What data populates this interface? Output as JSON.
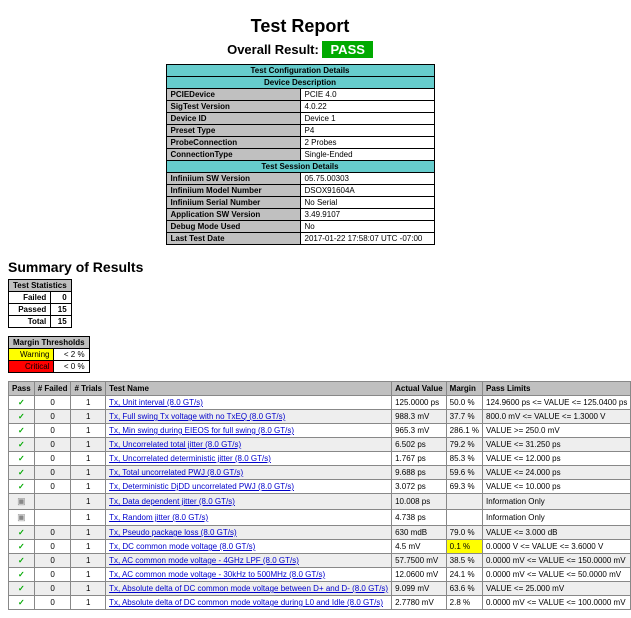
{
  "title": "Test Report",
  "overall_label": "Overall Result:",
  "overall_value": "PASS",
  "config": {
    "header1": "Test Configuration Details",
    "header2": "Device Description",
    "rows1": [
      {
        "k": "PCIEDevice",
        "v": "PCIE 4.0"
      },
      {
        "k": "SigTest Version",
        "v": "4.0.22"
      },
      {
        "k": "Device ID",
        "v": "Device 1"
      },
      {
        "k": "Preset Type",
        "v": "P4"
      },
      {
        "k": "ProbeConnection",
        "v": "2 Probes"
      },
      {
        "k": "ConnectionType",
        "v": "Single-Ended"
      }
    ],
    "header3": "Test Session Details",
    "rows2": [
      {
        "k": "Infiniium SW Version",
        "v": "05.75.00303"
      },
      {
        "k": "Infiniium Model Number",
        "v": "DSOX91604A"
      },
      {
        "k": "Infiniium Serial Number",
        "v": "No Serial"
      },
      {
        "k": "Application SW Version",
        "v": "3.49.9107"
      },
      {
        "k": "Debug Mode Used",
        "v": "No"
      },
      {
        "k": "Last Test Date",
        "v": "2017-01-22 17:58:07 UTC -07:00"
      }
    ]
  },
  "summary_heading": "Summary of Results",
  "stats": {
    "header": "Test Statistics",
    "rows": [
      {
        "k": "Failed",
        "v": "0"
      },
      {
        "k": "Passed",
        "v": "15"
      },
      {
        "k": "Total",
        "v": "15"
      }
    ]
  },
  "margins": {
    "header": "Margin Thresholds",
    "rows": [
      {
        "k": "Warning",
        "v": "< 2 %",
        "cls": "warn-cell"
      },
      {
        "k": "Critical",
        "v": "< 0 %",
        "cls": "crit-cell"
      }
    ]
  },
  "results": {
    "columns": [
      "Pass",
      "# Failed",
      "# Trials",
      "Test Name",
      "Actual Value",
      "Margin",
      "Pass Limits"
    ],
    "rows": [
      {
        "pass": "✓",
        "f": "0",
        "t": "1",
        "name": "Tx, Unit interval (8.0 GT/s)",
        "av": "125.0000 ps",
        "m": "50.0 %",
        "lim": "124.9600 ps <= VALUE <= 125.0400 ps",
        "warn": false
      },
      {
        "pass": "✓",
        "f": "0",
        "t": "1",
        "name": "Tx, Full swing Tx voltage with no TxEQ (8.0 GT/s)",
        "av": "988.3 mV",
        "m": "37.7 %",
        "lim": "800.0 mV <= VALUE <= 1.3000 V",
        "warn": false
      },
      {
        "pass": "✓",
        "f": "0",
        "t": "1",
        "name": "Tx, Min swing during EIEOS for full swing (8.0 GT/s)",
        "av": "965.3 mV",
        "m": "286.1 %",
        "lim": "VALUE >= 250.0 mV",
        "warn": false
      },
      {
        "pass": "✓",
        "f": "0",
        "t": "1",
        "name": "Tx, Uncorrelated total jitter (8.0 GT/s)",
        "av": "6.502 ps",
        "m": "79.2 %",
        "lim": "VALUE <= 31.250 ps",
        "warn": false
      },
      {
        "pass": "✓",
        "f": "0",
        "t": "1",
        "name": "Tx, Uncorrelated deterministic jitter (8.0 GT/s)",
        "av": "1.767 ps",
        "m": "85.3 %",
        "lim": "VALUE <= 12.000 ps",
        "warn": false
      },
      {
        "pass": "✓",
        "f": "0",
        "t": "1",
        "name": "Tx, Total uncorrelated PWJ (8.0 GT/s)",
        "av": "9.688 ps",
        "m": "59.6 %",
        "lim": "VALUE <= 24.000 ps",
        "warn": false
      },
      {
        "pass": "✓",
        "f": "0",
        "t": "1",
        "name": "Tx, Deterministic DjDD uncorrelated PWJ (8.0 GT/s)",
        "av": "3.072 ps",
        "m": "69.3 %",
        "lim": "VALUE <= 10.000 ps",
        "warn": false
      },
      {
        "pass": "i",
        "f": "",
        "t": "1",
        "name": "Tx, Data dependent jitter (8.0 GT/s)",
        "av": "10.008 ps",
        "m": "",
        "lim": "Information Only",
        "warn": false
      },
      {
        "pass": "i",
        "f": "",
        "t": "1",
        "name": "Tx, Random jitter (8.0 GT/s)",
        "av": "4.738 ps",
        "m": "",
        "lim": "Information Only",
        "warn": false
      },
      {
        "pass": "✓",
        "f": "0",
        "t": "1",
        "name": "Tx, Pseudo package loss (8.0 GT/s)",
        "av": "630 mdB",
        "m": "79.0 %",
        "lim": "VALUE <= 3.000 dB",
        "warn": false
      },
      {
        "pass": "✓",
        "f": "0",
        "t": "1",
        "name": "Tx, DC common mode voltage (8.0 GT/s)",
        "av": "4.5 mV",
        "m": "0.1 %",
        "lim": "0.0000 V <= VALUE <= 3.6000 V",
        "warn": true
      },
      {
        "pass": "✓",
        "f": "0",
        "t": "1",
        "name": "Tx, AC common mode voltage - 4GHz LPF (8.0 GT/s)",
        "av": "57.7500 mV",
        "m": "38.5 %",
        "lim": "0.0000 mV <= VALUE <= 150.0000 mV",
        "warn": false
      },
      {
        "pass": "✓",
        "f": "0",
        "t": "1",
        "name": "Tx, AC common mode voltage - 30kHz to 500MHz (8.0 GT/s)",
        "av": "12.0600 mV",
        "m": "24.1 %",
        "lim": "0.0000 mV <= VALUE <= 50.0000 mV",
        "warn": false
      },
      {
        "pass": "✓",
        "f": "0",
        "t": "1",
        "name": "Tx, Absolute delta of DC common mode voltage between D+ and D- (8.0 GT/s)",
        "av": "9.099 mV",
        "m": "63.6 %",
        "lim": "VALUE <= 25.000 mV",
        "warn": false
      },
      {
        "pass": "✓",
        "f": "0",
        "t": "1",
        "name": "Tx, Absolute delta of DC common mode voltage during L0 and Idle (8.0 GT/s)",
        "av": "2.7780 mV",
        "m": "2.8 %",
        "lim": "0.0000 mV <= VALUE <= 100.0000 mV",
        "warn": false
      }
    ]
  }
}
